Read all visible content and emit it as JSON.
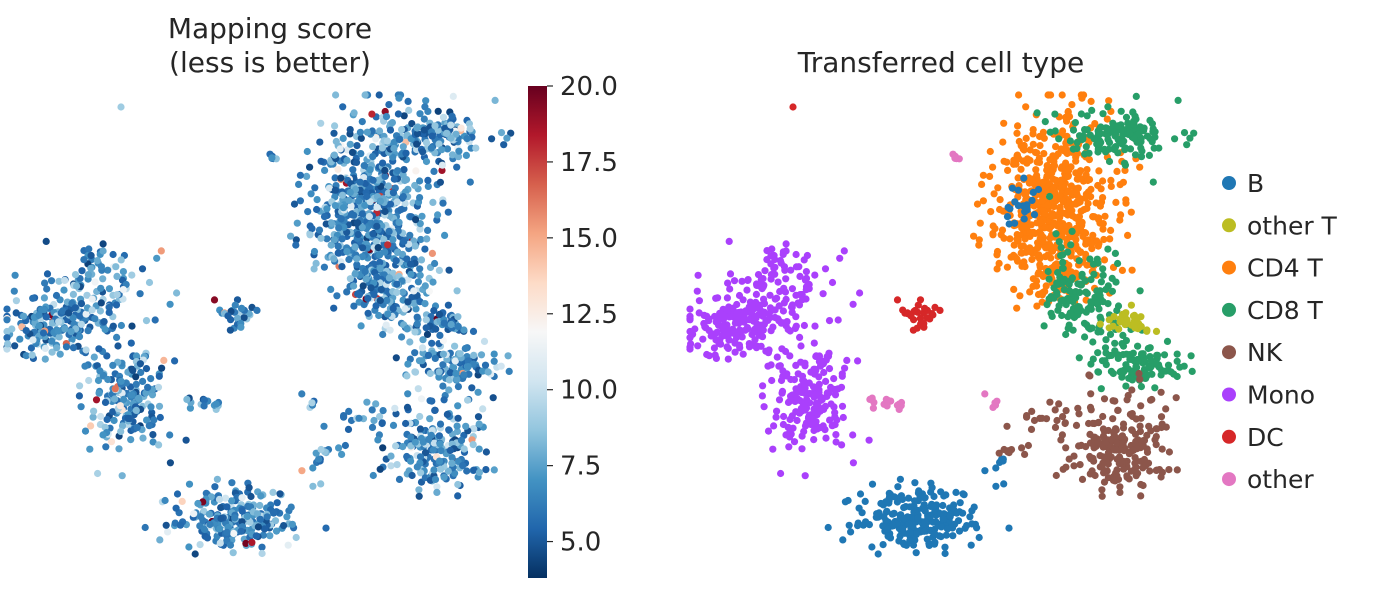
{
  "chart_data": [
    {
      "type": "scatter",
      "title_line1": "Mapping score",
      "title_line2": "(less is better)",
      "colorbar": {
        "colormap": "RdBu_r",
        "range": [
          3.8,
          20.0
        ],
        "ticks": [
          "5.0",
          "7.5",
          "10.0",
          "12.5",
          "15.0",
          "17.5",
          "20.0"
        ],
        "tick_values": [
          5.0,
          7.5,
          10.0,
          12.5,
          15.0,
          17.5,
          20.0
        ]
      },
      "axes_visible": false,
      "grid": false
    },
    {
      "type": "scatter",
      "title": "Transferred cell type",
      "legend_position": "right",
      "categories": [
        {
          "name": "B",
          "color": "#1f77b4"
        },
        {
          "name": "other T",
          "color": "#bcbd22"
        },
        {
          "name": "CD4 T",
          "color": "#ff7f0e"
        },
        {
          "name": "CD8 T",
          "color": "#279e68"
        },
        {
          "name": "NK",
          "color": "#8c564b"
        },
        {
          "name": "Mono",
          "color": "#aa40fc"
        },
        {
          "name": "DC",
          "color": "#d62728"
        },
        {
          "name": "other",
          "color": "#e377c2"
        }
      ],
      "axes_visible": false,
      "grid": false
    }
  ]
}
